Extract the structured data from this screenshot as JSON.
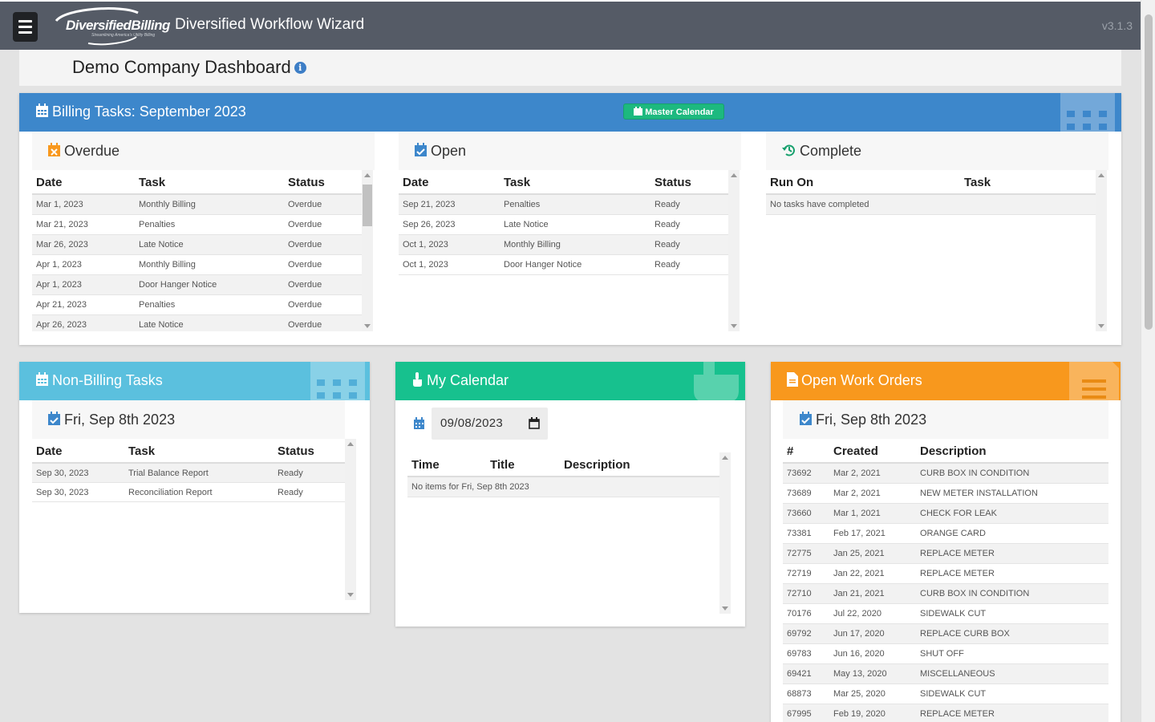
{
  "header": {
    "logo_text": "DiversifiedBilling",
    "logo_tagline": "Streamlining America's Utility Billing",
    "app_title": "Diversified Workflow Wizard",
    "version": "v3.1.3"
  },
  "dashboard": {
    "title": "Demo Company Dashboard",
    "info_icon": "i"
  },
  "billing": {
    "title": "Billing Tasks: September 2023",
    "master_calendar": "Master Calendar",
    "accent": "#3d87cb",
    "overdue": {
      "title": "Overdue",
      "columns": [
        "Date",
        "Task",
        "Status"
      ],
      "rows": [
        [
          "Mar 1, 2023",
          "Monthly Billing",
          "Overdue"
        ],
        [
          "Mar 21, 2023",
          "Penalties",
          "Overdue"
        ],
        [
          "Mar 26, 2023",
          "Late Notice",
          "Overdue"
        ],
        [
          "Apr 1, 2023",
          "Monthly Billing",
          "Overdue"
        ],
        [
          "Apr 1, 2023",
          "Door Hanger Notice",
          "Overdue"
        ],
        [
          "Apr 21, 2023",
          "Penalties",
          "Overdue"
        ],
        [
          "Apr 26, 2023",
          "Late Notice",
          "Overdue"
        ]
      ]
    },
    "open": {
      "title": "Open",
      "columns": [
        "Date",
        "Task",
        "Status"
      ],
      "rows": [
        [
          "Sep 21, 2023",
          "Penalties",
          "Ready"
        ],
        [
          "Sep 26, 2023",
          "Late Notice",
          "Ready"
        ],
        [
          "Oct 1, 2023",
          "Monthly Billing",
          "Ready"
        ],
        [
          "Oct 1, 2023",
          "Door Hanger Notice",
          "Ready"
        ]
      ]
    },
    "complete": {
      "title": "Complete",
      "columns": [
        "Run On",
        "Task"
      ],
      "empty": "No tasks have completed"
    }
  },
  "nonbilling": {
    "title": "Non-Billing Tasks",
    "accent": "#5bc0de",
    "date_title": "Fri, Sep 8th 2023",
    "columns": [
      "Date",
      "Task",
      "Status"
    ],
    "rows": [
      [
        "Sep 30, 2023",
        "Trial Balance Report",
        "Ready"
      ],
      [
        "Sep 30, 2023",
        "Reconciliation Report",
        "Ready"
      ]
    ]
  },
  "calendar": {
    "title": "My Calendar",
    "accent": "#17c18e",
    "date_value": "09/08/2023",
    "columns": [
      "Time",
      "Title",
      "Description"
    ],
    "empty": "No items for Fri, Sep 8th 2023"
  },
  "workorders": {
    "title": "Open Work Orders",
    "accent": "#f8981d",
    "date_title": "Fri, Sep 8th 2023",
    "columns": [
      "#",
      "Created",
      "Description"
    ],
    "rows": [
      [
        "73692",
        "Mar 2, 2021",
        "CURB BOX IN CONDITION"
      ],
      [
        "73689",
        "Mar 2, 2021",
        "NEW METER INSTALLATION"
      ],
      [
        "73660",
        "Mar 1, 2021",
        "CHECK FOR LEAK"
      ],
      [
        "73381",
        "Feb 17, 2021",
        "ORANGE CARD"
      ],
      [
        "72775",
        "Jan 25, 2021",
        "REPLACE METER"
      ],
      [
        "72719",
        "Jan 22, 2021",
        "REPLACE METER"
      ],
      [
        "72710",
        "Jan 21, 2021",
        "CURB BOX IN CONDITION"
      ],
      [
        "70176",
        "Jul 22, 2020",
        "SIDEWALK CUT"
      ],
      [
        "69792",
        "Jun 17, 2020",
        "REPLACE CURB BOX"
      ],
      [
        "69783",
        "Jun 16, 2020",
        "SHUT OFF"
      ],
      [
        "69421",
        "May 13, 2020",
        "MISCELLANEOUS"
      ],
      [
        "68873",
        "Mar 25, 2020",
        "SIDEWALK CUT"
      ],
      [
        "67995",
        "Feb 19, 2020",
        "REPLACE METER"
      ]
    ]
  }
}
